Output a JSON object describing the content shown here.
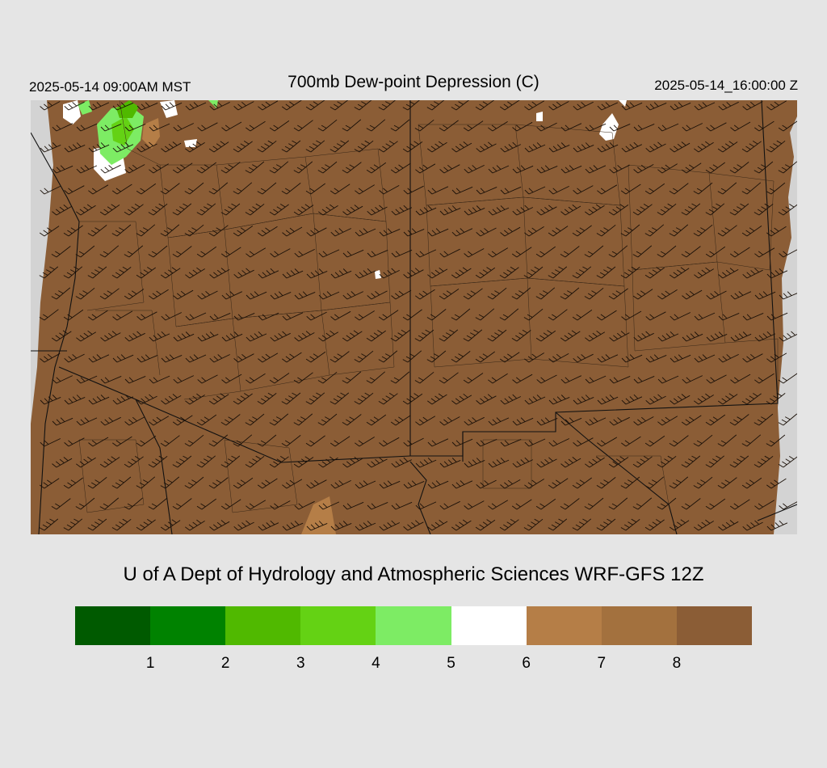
{
  "header": {
    "valid_time_local": "2025-05-14 09:00AM MST",
    "title": "700mb Dew-point Depression (C)",
    "valid_time_utc": "2025-05-14_16:00:00 Z"
  },
  "footer": {
    "credit": "U of A Dept of Hydrology and Atmospheric Sciences WRF-GFS 12Z"
  },
  "colorbar": {
    "colors": [
      "#005a00",
      "#008200",
      "#50b900",
      "#64d214",
      "#7dec64",
      "#ffffff",
      "#b57e47",
      "#a3713e",
      "#8b5d36"
    ],
    "labels": [
      "1",
      "2",
      "3",
      "4",
      "5",
      "6",
      "7",
      "8"
    ]
  },
  "map": {
    "fill_color": "#8b5d36",
    "missing_color": "#d3d3d3"
  }
}
